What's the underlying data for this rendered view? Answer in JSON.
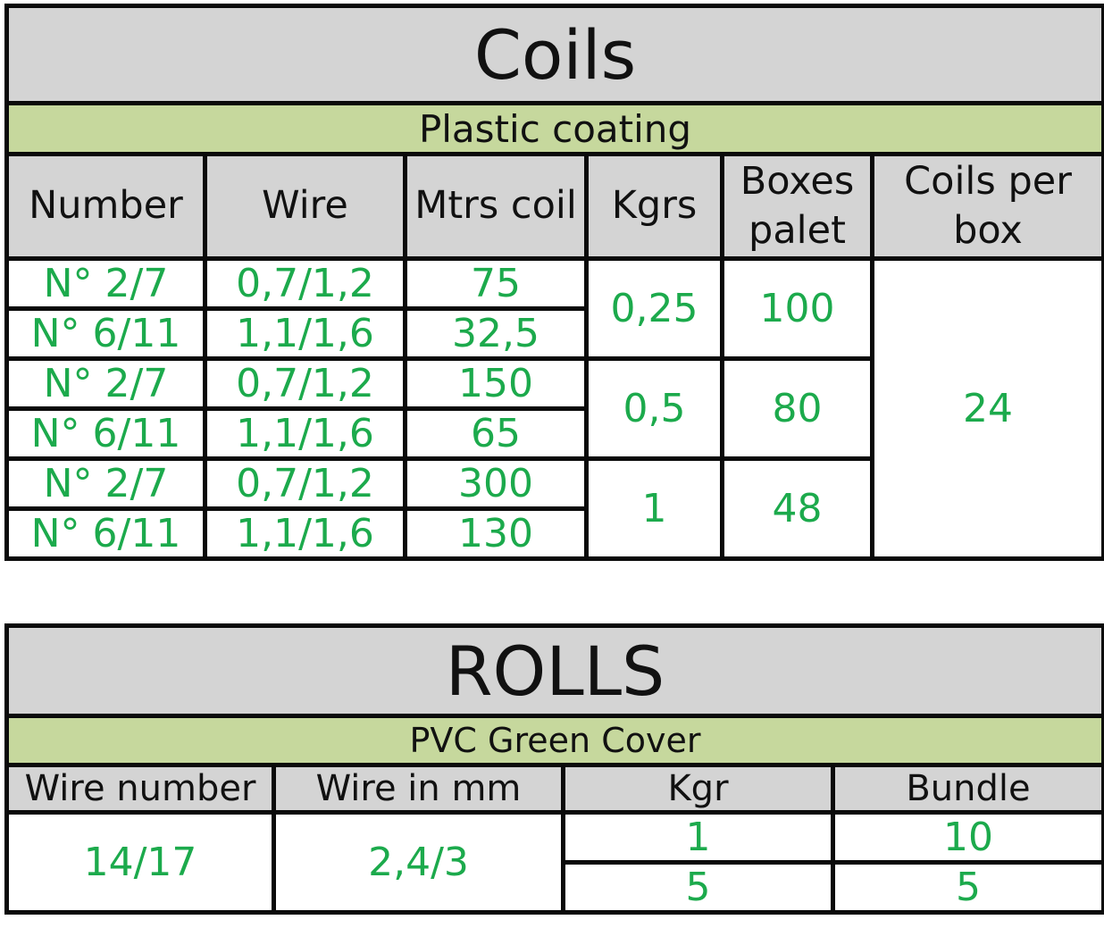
{
  "coils": {
    "title": "Coils",
    "subtitle": "Plastic coating",
    "headers": [
      "Number",
      "Wire",
      "Mtrs coil",
      "Kgrs",
      "Boxes palet",
      "Coils per box"
    ],
    "rows": [
      {
        "number": "N° 2/7",
        "wire": "0,7/1,2",
        "mtrs": "75"
      },
      {
        "number": "N° 6/11",
        "wire": "1,1/1,6",
        "mtrs": "32,5"
      },
      {
        "number": "N° 2/7",
        "wire": "0,7/1,2",
        "mtrs": "150"
      },
      {
        "number": "N° 6/11",
        "wire": "1,1/1,6",
        "mtrs": "65"
      },
      {
        "number": "N° 2/7",
        "wire": "0,7/1,2",
        "mtrs": "300"
      },
      {
        "number": "N° 6/11",
        "wire": "1,1/1,6",
        "mtrs": "130"
      }
    ],
    "groups": [
      {
        "kgrs": "0,25",
        "boxes": "100"
      },
      {
        "kgrs": "0,5",
        "boxes": "80"
      },
      {
        "kgrs": "1",
        "boxes": "48"
      }
    ],
    "coils_per_box": "24"
  },
  "rolls": {
    "title": "ROLLS",
    "subtitle": "PVC Green Cover",
    "headers": [
      "Wire number",
      "Wire in mm",
      "Kgr",
      "Bundle"
    ],
    "wire_number": "14/17",
    "wire_mm": "2,4/3",
    "rows": [
      {
        "kgr": "1",
        "bundle": "10"
      },
      {
        "kgr": "5",
        "bundle": "5"
      }
    ]
  },
  "colors": {
    "header_gray": "#d4d4d4",
    "subtitle_green": "#c6d89d",
    "value_green": "#1caa4c",
    "border": "#0a0a0a"
  }
}
